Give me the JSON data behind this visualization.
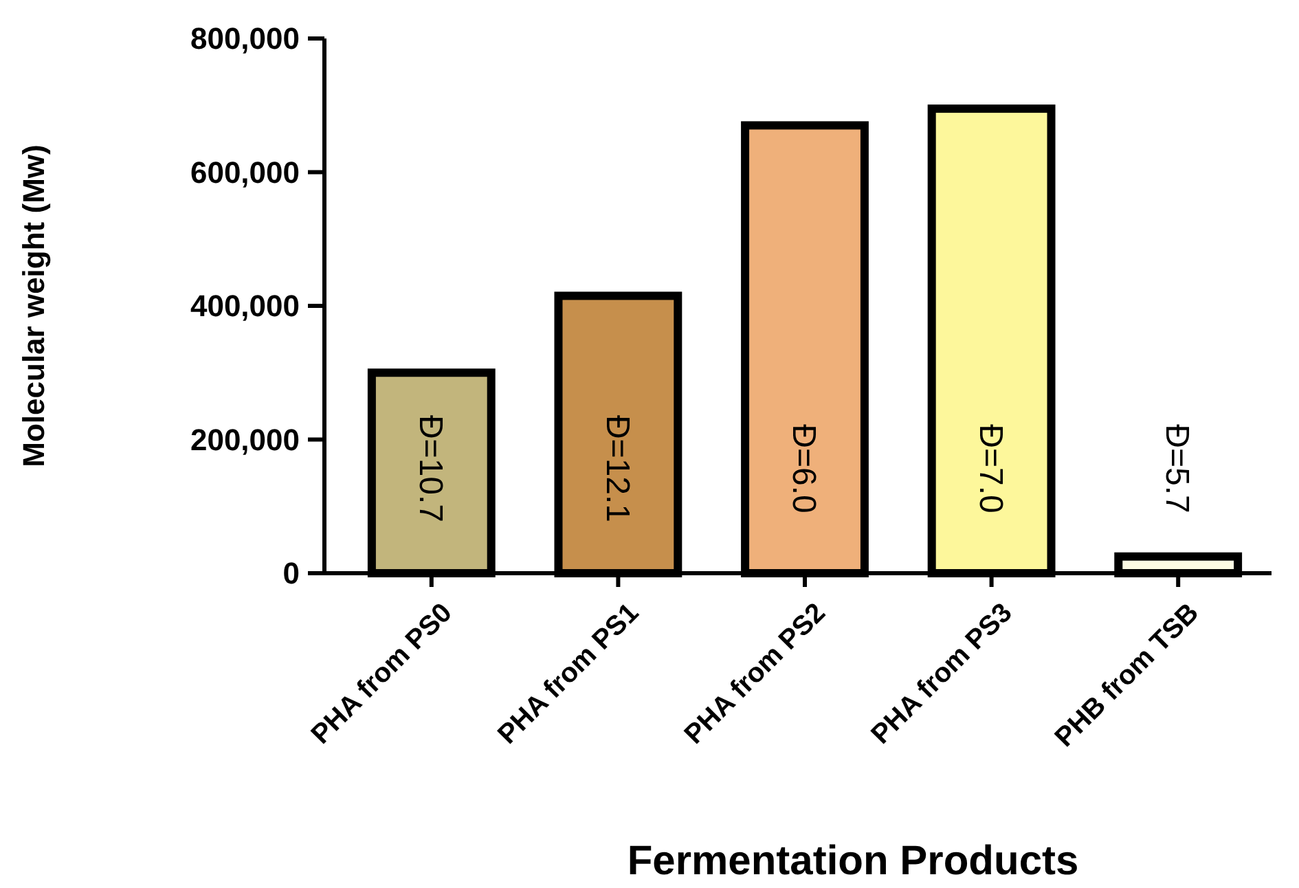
{
  "chart_data": {
    "type": "bar",
    "xlabel": "Fermentation Products",
    "ylabel": "Molecular weight (Mw)",
    "categories": [
      "PHA from PS0",
      "PHA from PS1",
      "PHA from PS2",
      "PHA from PS3",
      "PHB from TSB"
    ],
    "values": [
      300000,
      415000,
      670000,
      695000,
      25000
    ],
    "colors": [
      "#c2b57c",
      "#c68f4c",
      "#efb07a",
      "#fdf79b",
      "#fdfbe4"
    ],
    "ylim": [
      0,
      800000
    ],
    "yticks": [
      {
        "value": 0,
        "label": "0"
      },
      {
        "value": 200000,
        "label": "200,000"
      },
      {
        "value": 400000,
        "label": "400,000"
      },
      {
        "value": 600000,
        "label": "600,000"
      },
      {
        "value": 800000,
        "label": "800,000"
      }
    ],
    "annotations": [
      "Đ=10.7",
      "Đ=12.1",
      "Đ=6.0",
      "Đ=7.0",
      "Đ=5.7"
    ]
  }
}
